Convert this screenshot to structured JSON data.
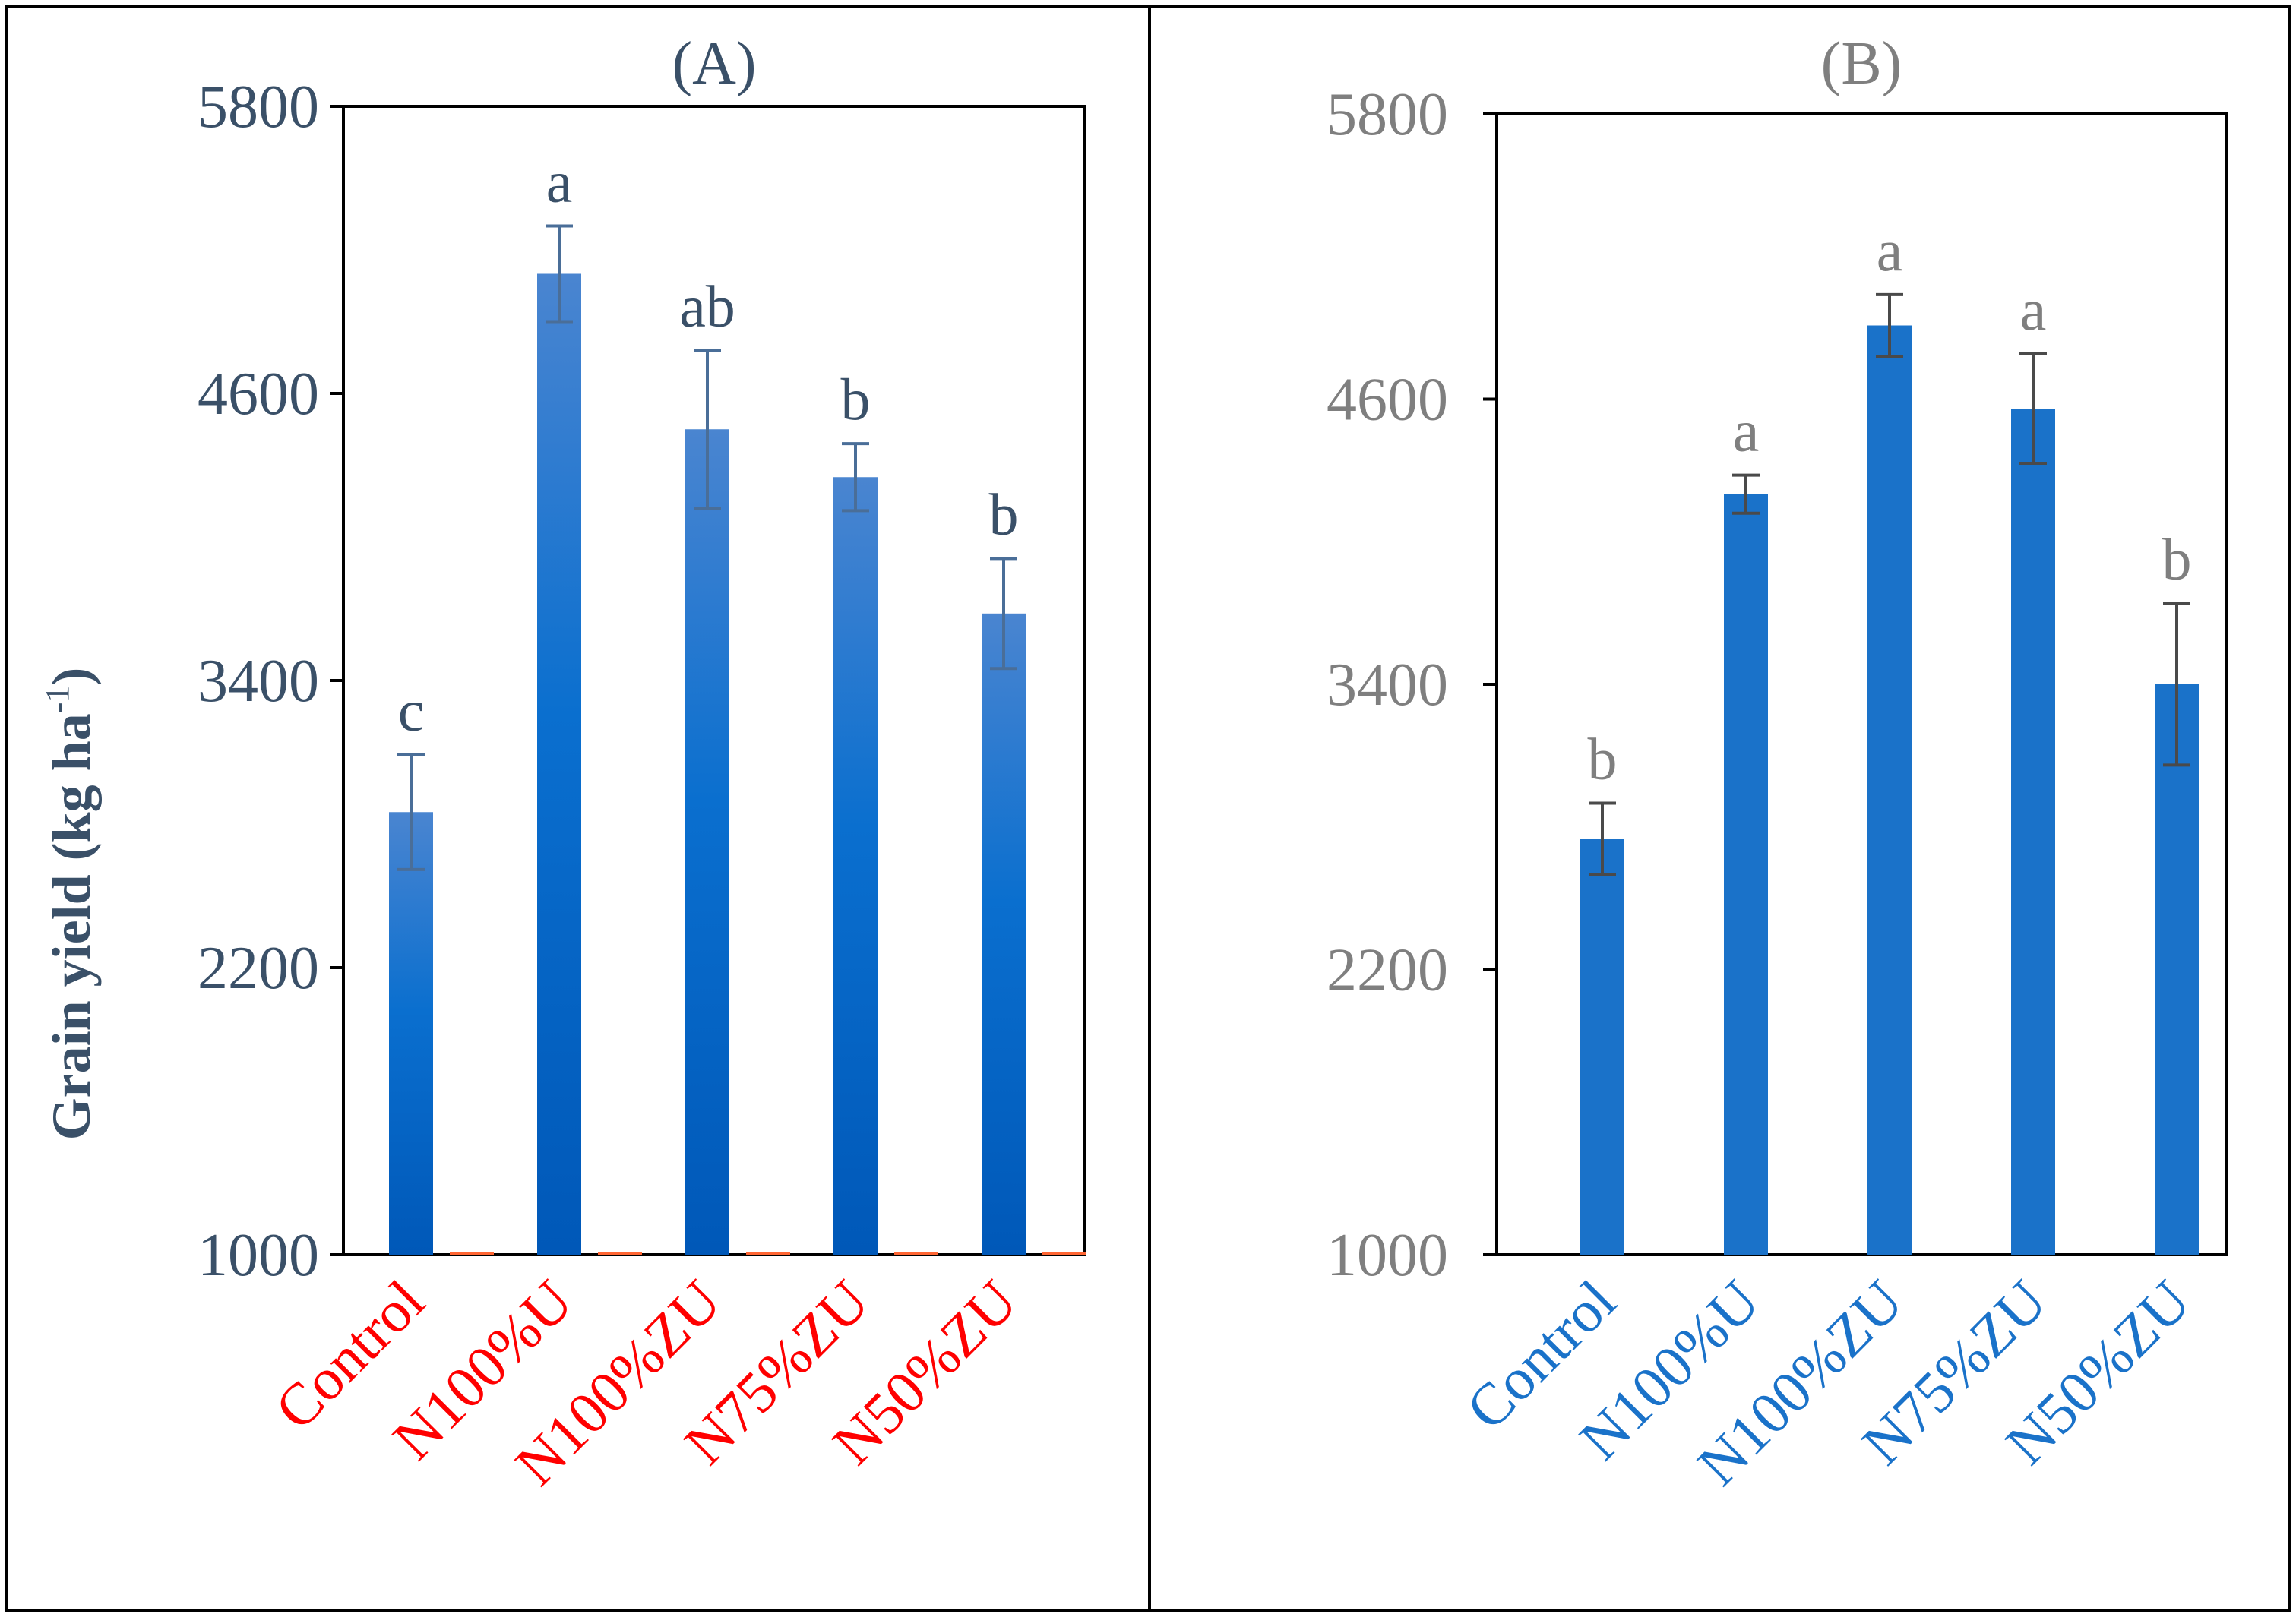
{
  "y_axis_title": "Grain yield (kg  ha",
  "y_axis_title_superscript": "-1",
  "y_axis_title_close": ")",
  "chart_data": [
    {
      "type": "bar",
      "title": "(A)",
      "categories": [
        "Control",
        "N100%U",
        "N100%ZU",
        "N75%ZU",
        "N50%ZU"
      ],
      "values": [
        2850,
        5100,
        4450,
        4250,
        3680
      ],
      "errors": [
        240,
        200,
        330,
        140,
        230
      ],
      "letters": [
        "c",
        "a",
        "ab",
        "b",
        "b"
      ],
      "ylabel": "Grain yield (kg ha-1)",
      "ylim": [
        1000,
        5800
      ],
      "yticks": [
        1000,
        2200,
        3400,
        4600,
        5800
      ],
      "colors": {
        "bar_top": "#4a85d0",
        "bar_mid": "#0a6fcf",
        "bar_bottom": "#0058b8",
        "error": "#4a6e98",
        "axis_text": "#3a5068",
        "category_text": "#ff0000",
        "baseline_marker": "#ff6633"
      }
    },
    {
      "type": "bar",
      "title": "(B)",
      "categories": [
        "Control",
        "N100%U",
        "N100%ZU",
        "N75%ZU",
        "N50%ZU"
      ],
      "values": [
        2750,
        4200,
        4910,
        4560,
        3400
      ],
      "errors": [
        150,
        80,
        130,
        230,
        340
      ],
      "letters": [
        "b",
        "a",
        "a",
        "a",
        "b"
      ],
      "ylabel": "Grain yield (kg ha-1)",
      "ylim": [
        1000,
        5800
      ],
      "yticks": [
        1000,
        2200,
        3400,
        4600,
        5800
      ],
      "colors": {
        "bar": "#1a72c9",
        "error": "#4a4a4a",
        "axis_text": "#7f7f7f",
        "category_text": "#1a72c9"
      }
    }
  ]
}
